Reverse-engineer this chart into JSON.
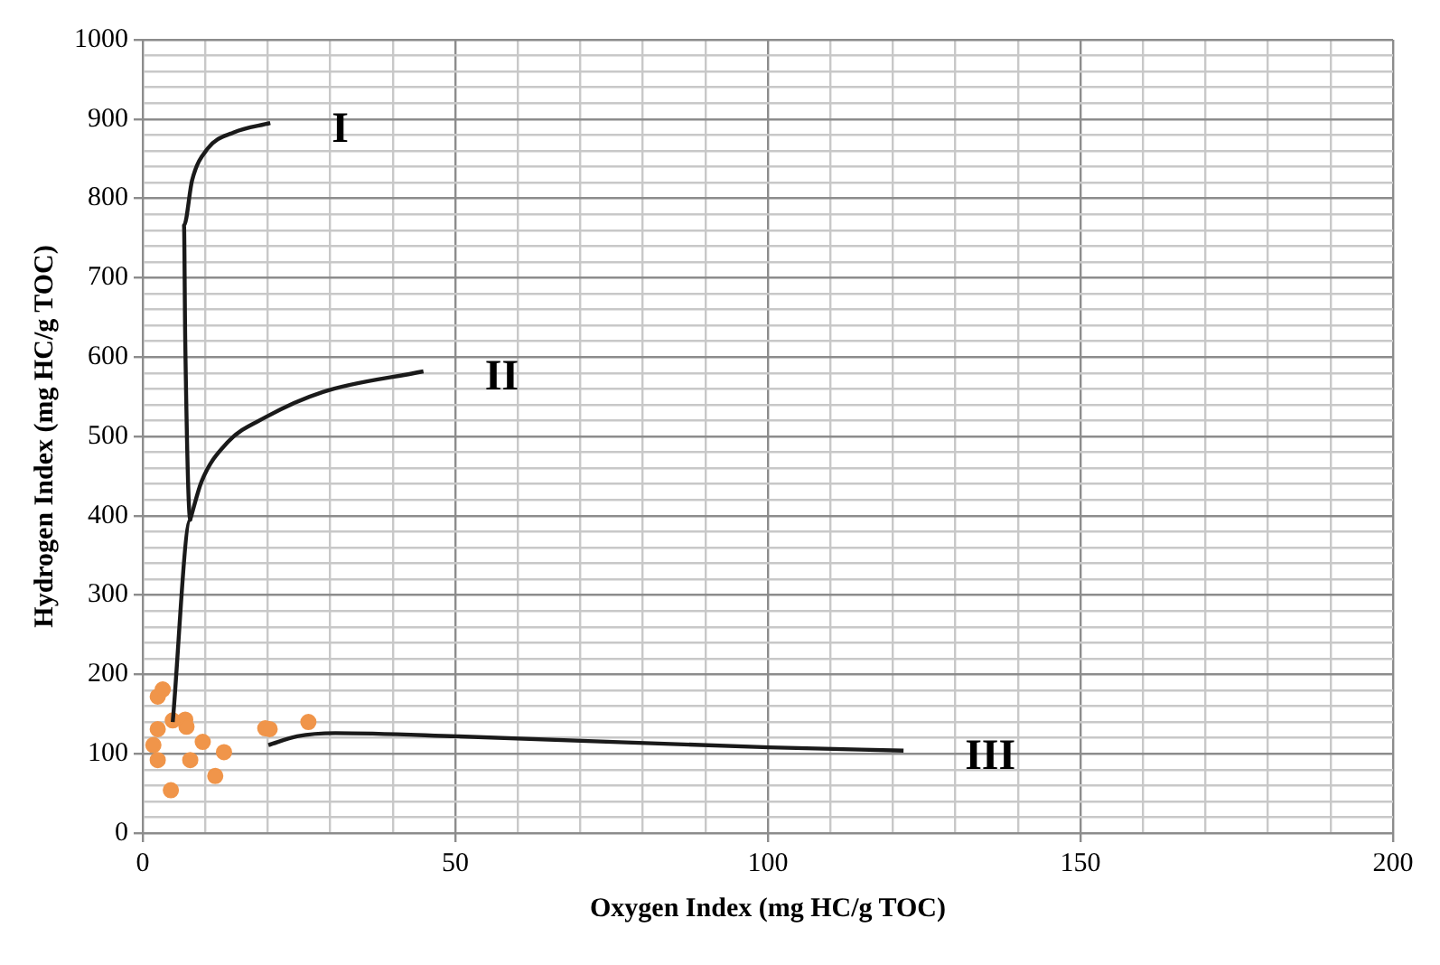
{
  "chart_data": {
    "type": "scatter",
    "xlabel": "Oxygen Index (mg HC/g TOC)",
    "ylabel": "Hydrogen Index (mg HC/g TOC)",
    "xlim": [
      0,
      200
    ],
    "ylim": [
      0,
      1000
    ],
    "xticks": [
      0,
      {
        "value": 10,
        "label": null
      },
      {
        "value": 20,
        "label": null
      },
      {
        "value": 30,
        "label": null
      },
      {
        "value": 40,
        "label": null
      },
      50,
      {
        "value": 60,
        "label": null
      },
      {
        "value": 70,
        "label": null
      },
      {
        "value": 80,
        "label": null
      },
      {
        "value": 90,
        "label": null
      },
      100,
      {
        "value": 110,
        "label": null
      },
      {
        "value": 120,
        "label": null
      },
      {
        "value": 130,
        "label": null
      },
      {
        "value": 140,
        "label": null
      },
      150,
      {
        "value": 160,
        "label": null
      },
      {
        "value": 170,
        "label": null
      },
      {
        "value": 180,
        "label": null
      },
      {
        "value": 190,
        "label": null
      },
      200
    ],
    "yticks": [
      0,
      {
        "value": 20,
        "label": null
      },
      {
        "value": 40,
        "label": null
      },
      {
        "value": 60,
        "label": null
      },
      {
        "value": 80,
        "label": null
      },
      100,
      {
        "value": 120,
        "label": null
      },
      {
        "value": 140,
        "label": null
      },
      {
        "value": 160,
        "label": null
      },
      {
        "value": 180,
        "label": null
      },
      200,
      {
        "value": 220,
        "label": null
      },
      {
        "value": 240,
        "label": null
      },
      {
        "value": 260,
        "label": null
      },
      {
        "value": 280,
        "label": null
      },
      300,
      {
        "value": 320,
        "label": null
      },
      {
        "value": 340,
        "label": null
      },
      {
        "value": 360,
        "label": null
      },
      {
        "value": 380,
        "label": null
      },
      400,
      {
        "value": 420,
        "label": null
      },
      {
        "value": 440,
        "label": null
      },
      {
        "value": 460,
        "label": null
      },
      {
        "value": 480,
        "label": null
      },
      500,
      {
        "value": 520,
        "label": null
      },
      {
        "value": 540,
        "label": null
      },
      {
        "value": 560,
        "label": null
      },
      {
        "value": 580,
        "label": null
      },
      600,
      {
        "value": 620,
        "label": null
      },
      {
        "value": 640,
        "label": null
      },
      {
        "value": 660,
        "label": null
      },
      {
        "value": 680,
        "label": null
      },
      700,
      {
        "value": 720,
        "label": null
      },
      {
        "value": 740,
        "label": null
      },
      {
        "value": 760,
        "label": null
      },
      {
        "value": 780,
        "label": null
      },
      800,
      {
        "value": 820,
        "label": null
      },
      {
        "value": 840,
        "label": null
      },
      {
        "value": 860,
        "label": null
      },
      {
        "value": 880,
        "label": null
      },
      900,
      {
        "value": 920,
        "label": null
      },
      {
        "value": 940,
        "label": null
      },
      {
        "value": 960,
        "label": null
      },
      {
        "value": 980,
        "label": null
      },
      1000
    ],
    "grid": true,
    "series": [
      {
        "type": "line",
        "color": "#1a1a1a",
        "marker": "none",
        "x": [
          4.8,
          7.6,
          6.8,
          6.6,
          7.9,
          10.4,
          14.5,
          20.4
        ],
        "values": [
          140,
          395,
          620,
          766,
          823,
          863,
          883,
          895
        ]
      },
      {
        "type": "line",
        "color": "#1a1a1a",
        "marker": "none",
        "x": [
          7.6,
          9.4,
          13.5,
          19.6,
          28.8,
          44.9
        ],
        "values": [
          395,
          443,
          492,
          524,
          556,
          582
        ]
      },
      {
        "type": "line",
        "color": "#1a1a1a",
        "marker": "none",
        "x": [
          20.1,
          24.7,
          30.8,
          50.2,
          100.2,
          121.7
        ],
        "values": [
          111,
          122,
          126,
          122,
          108,
          104
        ]
      },
      {
        "color": "#f0954a",
        "marker": "circle",
        "x": [
          2.4,
          3.2,
          2.4,
          4.8,
          6.8,
          7.0,
          1.7,
          2.4,
          9.6,
          7.6,
          13.0,
          11.6,
          4.5,
          19.6,
          20.3,
          26.5
        ],
        "values": [
          172,
          181,
          131,
          142,
          143,
          134,
          111,
          92,
          115,
          92,
          102,
          72,
          54,
          132,
          131,
          140
        ]
      }
    ],
    "annotations": [
      "I",
      "II",
      "III"
    ]
  }
}
